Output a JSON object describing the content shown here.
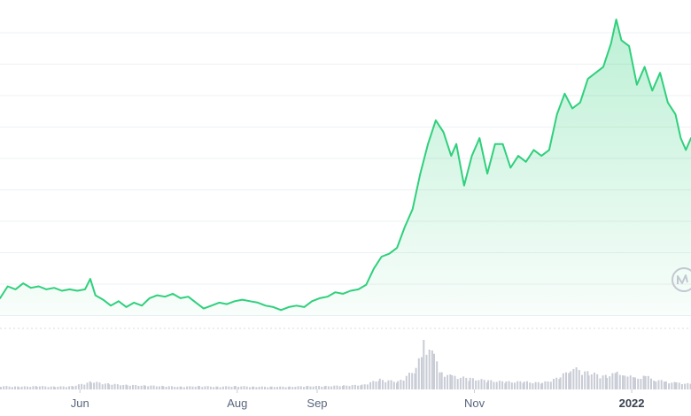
{
  "colors": {
    "line": "#2fd07c",
    "fill_top": "#2fd07c",
    "volume": "#c9ccd6",
    "grid": "#eef0f3",
    "tick_text": "#58667e"
  },
  "watermark_icon": "coinmarketcap-logo-icon",
  "chart_data": {
    "type": "area",
    "grid": true,
    "x_ticks": [
      {
        "label": "Jun",
        "date": "2021-06-01",
        "bold": false
      },
      {
        "label": "Aug",
        "date": "2021-08-01",
        "bold": false
      },
      {
        "label": "Sep",
        "date": "2021-09-01",
        "bold": false
      },
      {
        "label": "Nov",
        "date": "2021-11-01",
        "bold": false
      },
      {
        "label": "2022",
        "date": "2022-01-01",
        "bold": true
      }
    ],
    "x_range": [
      "2021-05-01",
      "2022-01-24"
    ],
    "price_range": [
      0,
      100
    ],
    "volume_range": [
      0,
      100
    ],
    "price_series": [
      [
        "2021-05-01",
        6
      ],
      [
        "2021-05-04",
        10
      ],
      [
        "2021-05-07",
        9
      ],
      [
        "2021-05-10",
        11
      ],
      [
        "2021-05-13",
        9.5
      ],
      [
        "2021-05-16",
        10
      ],
      [
        "2021-05-19",
        9
      ],
      [
        "2021-05-22",
        9.5
      ],
      [
        "2021-05-25",
        8.5
      ],
      [
        "2021-05-28",
        9
      ],
      [
        "2021-05-31",
        8.5
      ],
      [
        "2021-06-03",
        9
      ],
      [
        "2021-06-05",
        12.5
      ],
      [
        "2021-06-07",
        7
      ],
      [
        "2021-06-10",
        5.5
      ],
      [
        "2021-06-13",
        3.5
      ],
      [
        "2021-06-16",
        5
      ],
      [
        "2021-06-19",
        3
      ],
      [
        "2021-06-22",
        4.5
      ],
      [
        "2021-06-25",
        3.5
      ],
      [
        "2021-06-28",
        6
      ],
      [
        "2021-07-01",
        7
      ],
      [
        "2021-07-04",
        6.5
      ],
      [
        "2021-07-07",
        7.5
      ],
      [
        "2021-07-10",
        6
      ],
      [
        "2021-07-13",
        6.5
      ],
      [
        "2021-07-16",
        4.5
      ],
      [
        "2021-07-19",
        2.5
      ],
      [
        "2021-07-22",
        3.5
      ],
      [
        "2021-07-25",
        4.5
      ],
      [
        "2021-07-28",
        4
      ],
      [
        "2021-07-31",
        5
      ],
      [
        "2021-08-03",
        5.5
      ],
      [
        "2021-08-06",
        5
      ],
      [
        "2021-08-09",
        4.5
      ],
      [
        "2021-08-12",
        3.5
      ],
      [
        "2021-08-15",
        3
      ],
      [
        "2021-08-18",
        2
      ],
      [
        "2021-08-21",
        3
      ],
      [
        "2021-08-24",
        3.5
      ],
      [
        "2021-08-27",
        3
      ],
      [
        "2021-08-30",
        5
      ],
      [
        "2021-09-02",
        6
      ],
      [
        "2021-09-05",
        6.5
      ],
      [
        "2021-09-08",
        8
      ],
      [
        "2021-09-11",
        7.5
      ],
      [
        "2021-09-14",
        8.5
      ],
      [
        "2021-09-17",
        9
      ],
      [
        "2021-09-20",
        10.5
      ],
      [
        "2021-09-23",
        16
      ],
      [
        "2021-09-26",
        20
      ],
      [
        "2021-09-29",
        21
      ],
      [
        "2021-10-02",
        23
      ],
      [
        "2021-10-05",
        30
      ],
      [
        "2021-10-08",
        36
      ],
      [
        "2021-10-11",
        48
      ],
      [
        "2021-10-14",
        58
      ],
      [
        "2021-10-17",
        66
      ],
      [
        "2021-10-20",
        62
      ],
      [
        "2021-10-23",
        54
      ],
      [
        "2021-10-25",
        58
      ],
      [
        "2021-10-28",
        44
      ],
      [
        "2021-10-31",
        54
      ],
      [
        "2021-11-03",
        60
      ],
      [
        "2021-11-06",
        48
      ],
      [
        "2021-11-09",
        58
      ],
      [
        "2021-11-12",
        58
      ],
      [
        "2021-11-15",
        50
      ],
      [
        "2021-11-18",
        54
      ],
      [
        "2021-11-21",
        52
      ],
      [
        "2021-11-24",
        56
      ],
      [
        "2021-11-27",
        54
      ],
      [
        "2021-11-30",
        56
      ],
      [
        "2021-12-03",
        68
      ],
      [
        "2021-12-06",
        75
      ],
      [
        "2021-12-09",
        70
      ],
      [
        "2021-12-12",
        72
      ],
      [
        "2021-12-15",
        80
      ],
      [
        "2021-12-18",
        82
      ],
      [
        "2021-12-21",
        84
      ],
      [
        "2021-12-24",
        92
      ],
      [
        "2021-12-26",
        100
      ],
      [
        "2021-12-28",
        93
      ],
      [
        "2021-12-31",
        91
      ],
      [
        "2022-01-03",
        78
      ],
      [
        "2022-01-06",
        84
      ],
      [
        "2022-01-09",
        76
      ],
      [
        "2022-01-12",
        82
      ],
      [
        "2022-01-15",
        72
      ],
      [
        "2022-01-18",
        68
      ],
      [
        "2022-01-20",
        60
      ],
      [
        "2022-01-22",
        56
      ],
      [
        "2022-01-24",
        60
      ]
    ],
    "volume_series": [
      [
        "2021-05-01",
        6
      ],
      [
        "2021-05-08",
        5
      ],
      [
        "2021-05-15",
        6
      ],
      [
        "2021-05-22",
        5
      ],
      [
        "2021-05-29",
        6
      ],
      [
        "2021-06-05",
        14
      ],
      [
        "2021-06-12",
        10
      ],
      [
        "2021-06-19",
        8
      ],
      [
        "2021-06-26",
        7
      ],
      [
        "2021-07-03",
        6
      ],
      [
        "2021-07-10",
        5
      ],
      [
        "2021-07-17",
        6
      ],
      [
        "2021-07-24",
        5
      ],
      [
        "2021-07-31",
        6
      ],
      [
        "2021-08-07",
        5
      ],
      [
        "2021-08-14",
        5
      ],
      [
        "2021-08-21",
        5
      ],
      [
        "2021-08-28",
        6
      ],
      [
        "2021-09-04",
        6
      ],
      [
        "2021-09-11",
        7
      ],
      [
        "2021-09-18",
        8
      ],
      [
        "2021-09-25",
        18
      ],
      [
        "2021-10-02",
        14
      ],
      [
        "2021-10-09",
        36
      ],
      [
        "2021-10-12",
        88
      ],
      [
        "2021-10-16",
        60
      ],
      [
        "2021-10-19",
        30
      ],
      [
        "2021-10-23",
        24
      ],
      [
        "2021-10-30",
        20
      ],
      [
        "2021-11-06",
        16
      ],
      [
        "2021-11-13",
        14
      ],
      [
        "2021-11-20",
        14
      ],
      [
        "2021-11-27",
        12
      ],
      [
        "2021-12-04",
        22
      ],
      [
        "2021-12-08",
        40
      ],
      [
        "2021-12-15",
        30
      ],
      [
        "2021-12-22",
        24
      ],
      [
        "2021-12-26",
        30
      ],
      [
        "2021-12-29",
        28
      ],
      [
        "2022-01-02",
        20
      ],
      [
        "2022-01-06",
        24
      ],
      [
        "2022-01-10",
        18
      ],
      [
        "2022-01-14",
        14
      ],
      [
        "2022-01-18",
        12
      ],
      [
        "2022-01-24",
        10
      ]
    ]
  }
}
